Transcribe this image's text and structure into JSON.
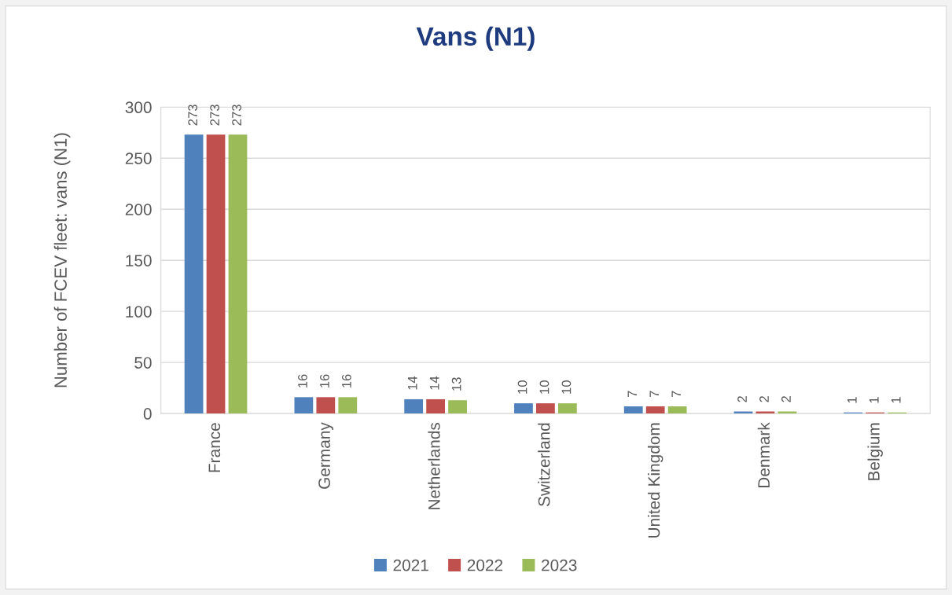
{
  "chart_data": {
    "type": "bar",
    "title": "Vans (N1)",
    "ylabel": "Number of FCEV fleet: vans (N1)",
    "categories": [
      "France",
      "Germany",
      "Netherlands",
      "Switzerland",
      "United Kingdom",
      "Denmark",
      "Belgium"
    ],
    "series": [
      {
        "name": "2021",
        "color": "#4f81bd",
        "values": [
          273,
          16,
          14,
          10,
          7,
          2,
          1
        ]
      },
      {
        "name": "2022",
        "color": "#c0504d",
        "values": [
          273,
          16,
          14,
          10,
          7,
          2,
          1
        ]
      },
      {
        "name": "2023",
        "color": "#9bbb59",
        "values": [
          273,
          16,
          13,
          10,
          7,
          2,
          1
        ]
      }
    ],
    "ylim": [
      0,
      300
    ],
    "yticks": [
      0,
      50,
      100,
      150,
      200,
      250,
      300
    ],
    "grid": "y",
    "legend": "bottom",
    "data_labels": true
  }
}
